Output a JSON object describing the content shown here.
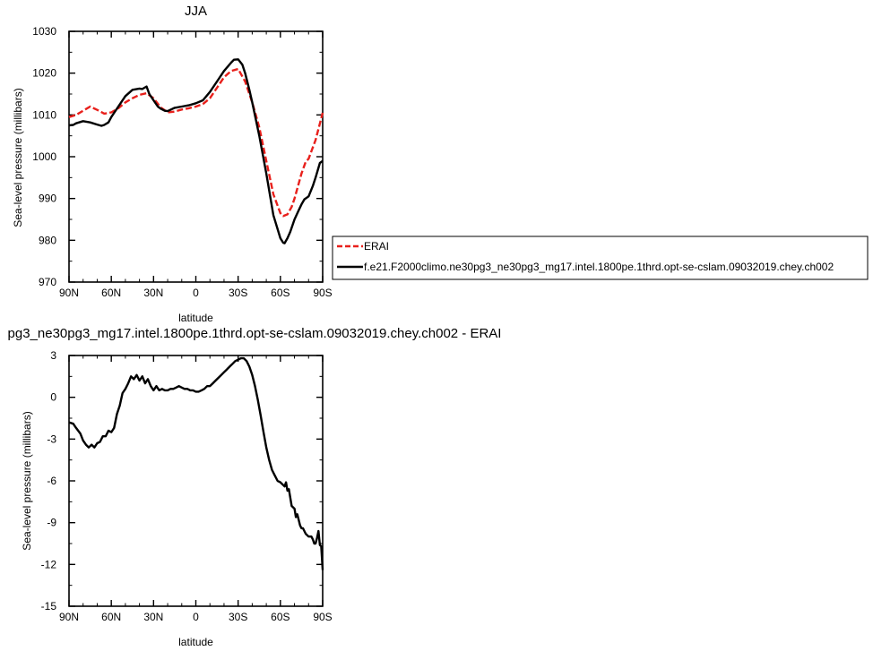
{
  "chart_data": [
    {
      "type": "line",
      "title": "JJA",
      "xlabel": "latitude",
      "ylabel": "Sea-level pressure (millibars)",
      "xlim": [
        90,
        -90
      ],
      "ylim": [
        970,
        1030
      ],
      "xticks": [
        90,
        60,
        30,
        0,
        -30,
        -60,
        -90
      ],
      "xtick_labels": [
        "90N",
        "60N",
        "30N",
        "0",
        "30S",
        "60S",
        "90S"
      ],
      "yticks": [
        970,
        980,
        990,
        1000,
        1010,
        1020,
        1030
      ],
      "ytick_labels": [
        "970",
        "980",
        "990",
        "1000",
        "1010",
        "1020",
        "1030"
      ],
      "legend_position": "right",
      "series": [
        {
          "name": "ERAI",
          "color": "#e8201c",
          "dashed": true,
          "x": [
            90,
            85,
            80,
            75,
            70,
            65,
            60,
            55,
            50,
            45,
            40,
            35,
            30,
            25,
            20,
            15,
            10,
            5,
            0,
            -5,
            -10,
            -15,
            -20,
            -25,
            -30,
            -35,
            -40,
            -45,
            -50,
            -55,
            -60,
            -62,
            -65,
            -68,
            -70,
            -75,
            -78,
            -80,
            -85,
            -90
          ],
          "values": [
            1009.5,
            1010,
            1011,
            1012,
            1011.2,
            1010.3,
            1010.6,
            1011.6,
            1013,
            1014,
            1014.8,
            1015.2,
            1014,
            1011.8,
            1010.6,
            1010.8,
            1011.3,
            1011.6,
            1012,
            1012.6,
            1014,
            1016.5,
            1019,
            1020.5,
            1021,
            1018,
            1013,
            1007,
            999,
            991,
            986.5,
            985.8,
            986.2,
            988,
            990,
            996,
            998.8,
            999.5,
            1004,
            1010.5
          ]
        },
        {
          "name": "f.e21.F2000climo.ne30pg3_ne30pg3_mg17.intel.1800pe.1thrd.opt-se-cslam.09032019.chey.ch002",
          "color": "#000000",
          "dashed": false,
          "x": [
            90,
            87,
            85,
            80,
            75,
            70,
            67,
            65,
            62,
            60,
            55,
            50,
            45,
            40,
            38,
            35,
            33,
            30,
            27,
            25,
            22,
            20,
            17,
            15,
            10,
            5,
            0,
            -5,
            -10,
            -15,
            -20,
            -25,
            -27,
            -30,
            -33,
            -35,
            -38,
            -40,
            -45,
            -50,
            -55,
            -60,
            -62,
            -63,
            -65,
            -67,
            -70,
            -73,
            -75,
            -77,
            -80,
            -83,
            -85,
            -88,
            -90
          ],
          "values": [
            1007.5,
            1007.6,
            1008,
            1008.5,
            1008.2,
            1007.7,
            1007.4,
            1007.6,
            1008.2,
            1009.5,
            1012,
            1014.5,
            1016,
            1016.3,
            1016.2,
            1016.8,
            1015,
            1013.5,
            1012,
            1011.5,
            1011,
            1010.9,
            1011.4,
            1011.7,
            1012,
            1012.3,
            1012.8,
            1013.5,
            1015.5,
            1018,
            1020.5,
            1022.5,
            1023.2,
            1023.3,
            1022,
            1020,
            1016,
            1013,
            1005,
            996,
            986,
            980.5,
            979.4,
            979.3,
            980.5,
            982,
            985,
            987.2,
            988.6,
            989.8,
            990.5,
            993,
            995,
            998.5,
            999
          ]
        }
      ]
    },
    {
      "type": "line",
      "title": "pg3_ne30pg3_mg17.intel.1800pe.1thrd.opt-se-cslam.09032019.chey.ch002 - ERAI",
      "xlabel": "latitude",
      "ylabel": "Sea-level pressure (millibars)",
      "xlim": [
        90,
        -90
      ],
      "ylim": [
        -15,
        3
      ],
      "xticks": [
        90,
        60,
        30,
        0,
        -30,
        -60,
        -90
      ],
      "xtick_labels": [
        "90N",
        "60N",
        "30N",
        "0",
        "30S",
        "60S",
        "90S"
      ],
      "yticks": [
        -15,
        -12,
        -9,
        -6,
        -3,
        0,
        3
      ],
      "ytick_labels": [
        "-15",
        "-12",
        "-9",
        "-6",
        "-3",
        "0",
        "3"
      ],
      "series": [
        {
          "color": "#000000",
          "dashed": false,
          "x": [
            90,
            87,
            85,
            82,
            80,
            78,
            76,
            74,
            72,
            70,
            68,
            66,
            64,
            62,
            60,
            58,
            56,
            54,
            52,
            50,
            48,
            46,
            44,
            42,
            40,
            38,
            36,
            34,
            32,
            30,
            28,
            26,
            24,
            22,
            20,
            18,
            16,
            14,
            12,
            10,
            8,
            6,
            4,
            2,
            0,
            -2,
            -4,
            -6,
            -8,
            -10,
            -12,
            -14,
            -16,
            -18,
            -20,
            -22,
            -24,
            -26,
            -28,
            -30,
            -32,
            -34,
            -36,
            -38,
            -40,
            -42,
            -44,
            -46,
            -48,
            -50,
            -52,
            -54,
            -56,
            -58,
            -60,
            -62,
            -63,
            -64,
            -65,
            -66,
            -68,
            -70,
            -71,
            -72,
            -74,
            -75,
            -76,
            -78,
            -80,
            -82,
            -83,
            -84,
            -85,
            -86,
            -87,
            -88,
            -89,
            -90
          ],
          "values": [
            -1.8,
            -1.9,
            -2.2,
            -2.6,
            -3.1,
            -3.4,
            -3.6,
            -3.4,
            -3.6,
            -3.3,
            -3.2,
            -2.8,
            -2.8,
            -2.4,
            -2.5,
            -2.2,
            -1.2,
            -0.6,
            0.3,
            0.6,
            1.0,
            1.5,
            1.3,
            1.6,
            1.2,
            1.5,
            1.0,
            1.3,
            0.8,
            0.5,
            0.8,
            0.5,
            0.6,
            0.5,
            0.5,
            0.6,
            0.6,
            0.7,
            0.8,
            0.7,
            0.6,
            0.6,
            0.5,
            0.5,
            0.4,
            0.4,
            0.5,
            0.6,
            0.8,
            0.8,
            1.0,
            1.2,
            1.4,
            1.6,
            1.8,
            2.0,
            2.2,
            2.4,
            2.6,
            2.7,
            2.8,
            2.8,
            2.6,
            2.2,
            1.6,
            0.8,
            -0.2,
            -1.3,
            -2.5,
            -3.6,
            -4.5,
            -5.2,
            -5.6,
            -6.0,
            -6.1,
            -6.3,
            -6.4,
            -6.1,
            -6.7,
            -6.6,
            -7.8,
            -8.0,
            -8.6,
            -8.4,
            -9.2,
            -9.4,
            -9.4,
            -9.8,
            -10.0,
            -10.0,
            -10.2,
            -10.5,
            -10.5,
            -10.1,
            -9.6,
            -10.6,
            -10.7,
            -12.4
          ]
        }
      ]
    }
  ]
}
